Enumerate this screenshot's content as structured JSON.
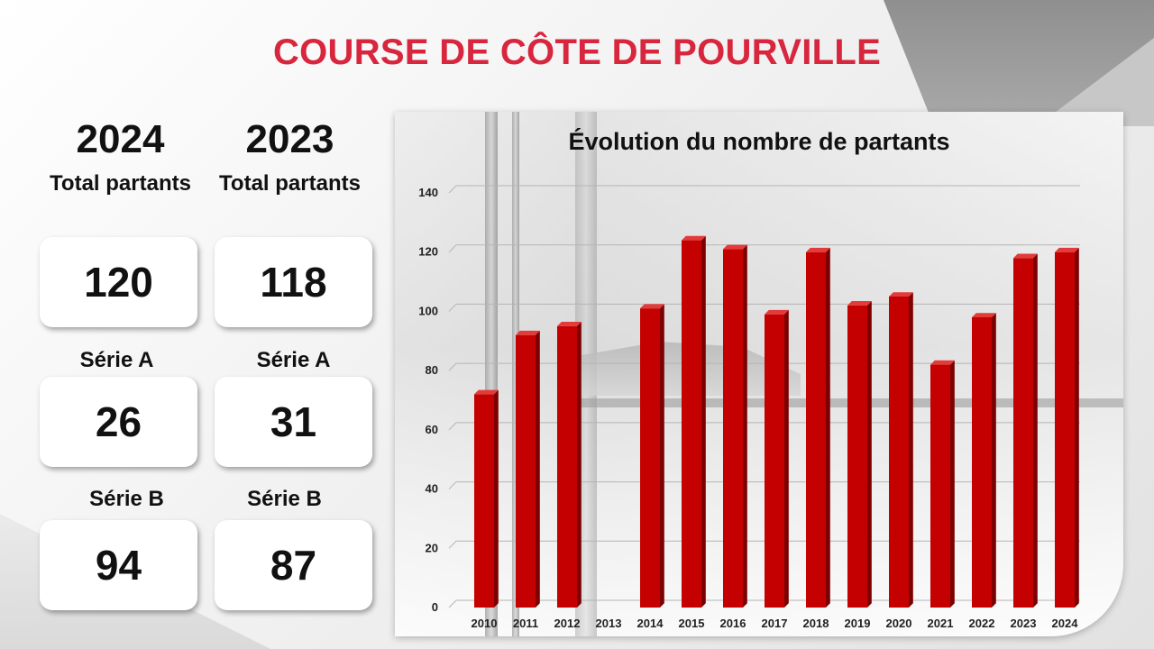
{
  "title": "COURSE DE CÔTE DE POURVILLE",
  "stats": [
    {
      "year": "2024",
      "total_label": "Total partants",
      "total": "120",
      "serie_a_label": "Série A",
      "serie_a": "26",
      "serie_b_label": "Série B",
      "serie_b": "94"
    },
    {
      "year": "2023",
      "total_label": "Total partants",
      "total": "118",
      "serie_a_label": "Série A",
      "serie_a": "31",
      "serie_b_label": "Série B",
      "serie_b": "87"
    }
  ],
  "colors": {
    "title": "#d7263d",
    "bar_front": "#c40000",
    "bar_side": "#7d0000",
    "bar_top": "#e33a3a"
  },
  "chart_data": {
    "type": "bar",
    "title": "Évolution du nombre de partants",
    "categories": [
      "2010",
      "2011",
      "2012",
      "2013",
      "2014",
      "2015",
      "2016",
      "2017",
      "2018",
      "2019",
      "2020",
      "2021",
      "2022",
      "2023",
      "2024"
    ],
    "values": [
      72,
      92,
      95,
      null,
      101,
      124,
      121,
      99,
      120,
      102,
      105,
      82,
      98,
      118,
      120
    ],
    "ylim": [
      0,
      140
    ],
    "yticks": [
      0,
      20,
      40,
      60,
      80,
      100,
      120,
      140
    ],
    "xlabel": "",
    "ylabel": "",
    "grid": true,
    "legend": "none"
  }
}
